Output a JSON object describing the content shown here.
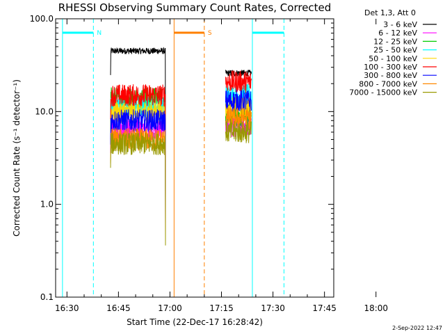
{
  "chart_data": {
    "type": "line",
    "title": "RHESSI Observing Summary Count Rates, Corrected",
    "xlabel": "Start Time (22-Dec-17 16:28:42)",
    "ylabel": "Corrected Count Rate (s⁻¹ detector⁻¹)",
    "yscale": "log",
    "ylim": [
      0.1,
      100.0
    ],
    "xlim_minutes": [
      -2,
      79
    ],
    "x_ticks": [
      {
        "t": 1.3,
        "label": "16:30"
      },
      {
        "t": 16.3,
        "label": "16:45"
      },
      {
        "t": 31.3,
        "label": "17:00"
      },
      {
        "t": 46.3,
        "label": "17:15"
      },
      {
        "t": 61.3,
        "label": "17:30"
      },
      {
        "t": 76.3,
        "label": "17:45"
      },
      {
        "t": 91.3,
        "label": "18:00"
      }
    ],
    "y_ticks": [
      {
        "v": 0.1,
        "label": "0.1"
      },
      {
        "v": 1.0,
        "label": "1.0"
      },
      {
        "v": 10.0,
        "label": "10.0"
      },
      {
        "v": 100.0,
        "label": "100.0"
      }
    ],
    "legend_title": "Det 1,3, Att 0",
    "legend_position": "top-right",
    "series": [
      {
        "name": "3 - 6 keV",
        "color": "#000000",
        "segments": [
          [
            14,
            30,
            45
          ],
          [
            47.5,
            55,
            26
          ]
        ]
      },
      {
        "name": "6 - 12 keV",
        "color": "#ff00ff",
        "segments": [
          [
            14,
            30,
            6.5
          ],
          [
            47.5,
            55,
            7
          ]
        ]
      },
      {
        "name": "12 - 25 keV",
        "color": "#00cc00",
        "segments": [
          [
            14,
            30,
            14
          ],
          [
            47.5,
            55,
            9
          ]
        ]
      },
      {
        "name": "25 - 50 keV",
        "color": "#00ffff",
        "segments": [
          [
            14,
            30,
            11
          ],
          [
            47.5,
            55,
            15
          ]
        ]
      },
      {
        "name": "50 - 100 keV",
        "color": "#ffd700",
        "segments": [
          [
            14,
            30,
            10
          ],
          [
            47.5,
            55,
            11
          ]
        ]
      },
      {
        "name": "100 - 300 keV",
        "color": "#ff0000",
        "segments": [
          [
            14,
            30,
            15
          ],
          [
            47.5,
            55,
            21
          ]
        ]
      },
      {
        "name": "300 - 800 keV",
        "color": "#0000ff",
        "segments": [
          [
            14,
            30,
            8
          ],
          [
            47.5,
            55,
            13
          ]
        ]
      },
      {
        "name": "800 - 7000 keV",
        "color": "#ff8800",
        "segments": [
          [
            14,
            30,
            5
          ],
          [
            47.5,
            55,
            8.5
          ]
        ]
      },
      {
        "name": "7000 - 15000 keV",
        "color": "#999900",
        "segments": [
          [
            14,
            30,
            4.5
          ],
          [
            47.5,
            55,
            6
          ]
        ]
      }
    ],
    "annotations": [
      {
        "kind": "night",
        "label": "N",
        "color": "#00ffff",
        "start": 0,
        "end": 9
      },
      {
        "kind": "night",
        "label": "",
        "color": "#00ffff",
        "start": 55.3,
        "end": 64.5
      },
      {
        "kind": "saa",
        "label": "S",
        "color": "#ff8000",
        "start": 32.5,
        "end": 41.3
      }
    ]
  },
  "timestamp": "2-Sep-2022 12:47"
}
